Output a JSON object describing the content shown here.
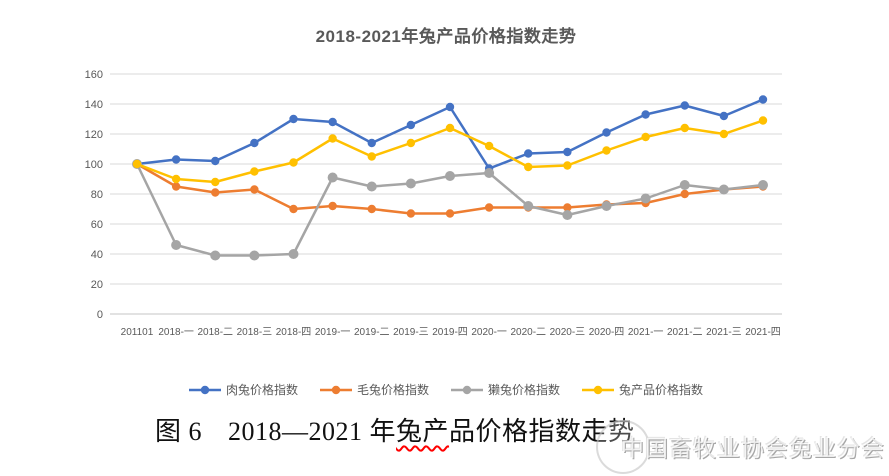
{
  "chart_data": {
    "type": "line",
    "title": "2018-2021年兔产品价格指数走势",
    "categories": [
      "201101",
      "2018-一",
      "2018-二",
      "2018-三",
      "2018-四",
      "2019-一",
      "2019-二",
      "2019-三",
      "2019-四",
      "2020-一",
      "2020-二",
      "2020-三",
      "2020-四",
      "2021-一",
      "2021-二",
      "2021-三",
      "2021-四"
    ],
    "series": [
      {
        "name": "肉兔价格指数",
        "color": "#4472C4",
        "marker_r": 4.2,
        "values": [
          100,
          103,
          102,
          114,
          130,
          128,
          114,
          126,
          138,
          97,
          107,
          108,
          121,
          133,
          139,
          132,
          143
        ]
      },
      {
        "name": "毛兔价格指数",
        "color": "#ED7D31",
        "marker_r": 4.2,
        "values": [
          100,
          85,
          81,
          83,
          70,
          72,
          70,
          67,
          67,
          71,
          71,
          71,
          73,
          74,
          80,
          83,
          85
        ]
      },
      {
        "name": "獭兔价格指数",
        "color": "#A5A5A5",
        "marker_r": 5,
        "values": [
          100,
          46,
          39,
          39,
          40,
          91,
          85,
          87,
          92,
          94,
          72,
          66,
          72,
          77,
          86,
          83,
          86
        ]
      },
      {
        "name": "兔产品价格指数",
        "color": "#FFC000",
        "marker_r": 4.2,
        "values": [
          100,
          90,
          88,
          95,
          101,
          117,
          105,
          114,
          124,
          112,
          98,
          99,
          109,
          118,
          124,
          120,
          129
        ]
      }
    ],
    "ylim": [
      0,
      160
    ],
    "ytick_step": 20,
    "xlabel": "",
    "ylabel": "",
    "grid": "horizontal",
    "gridline_color": "#d9d9d9",
    "axis_line_color": "#c6c6c6",
    "legend_position": "bottom"
  },
  "figure_caption": {
    "label": "图 6",
    "before_wavy": "2018—2021 年",
    "wavy": "兔产",
    "after_wavy": "品价格指数走势"
  },
  "watermark": {
    "text": "中国畜牧业协会兔业分会"
  }
}
